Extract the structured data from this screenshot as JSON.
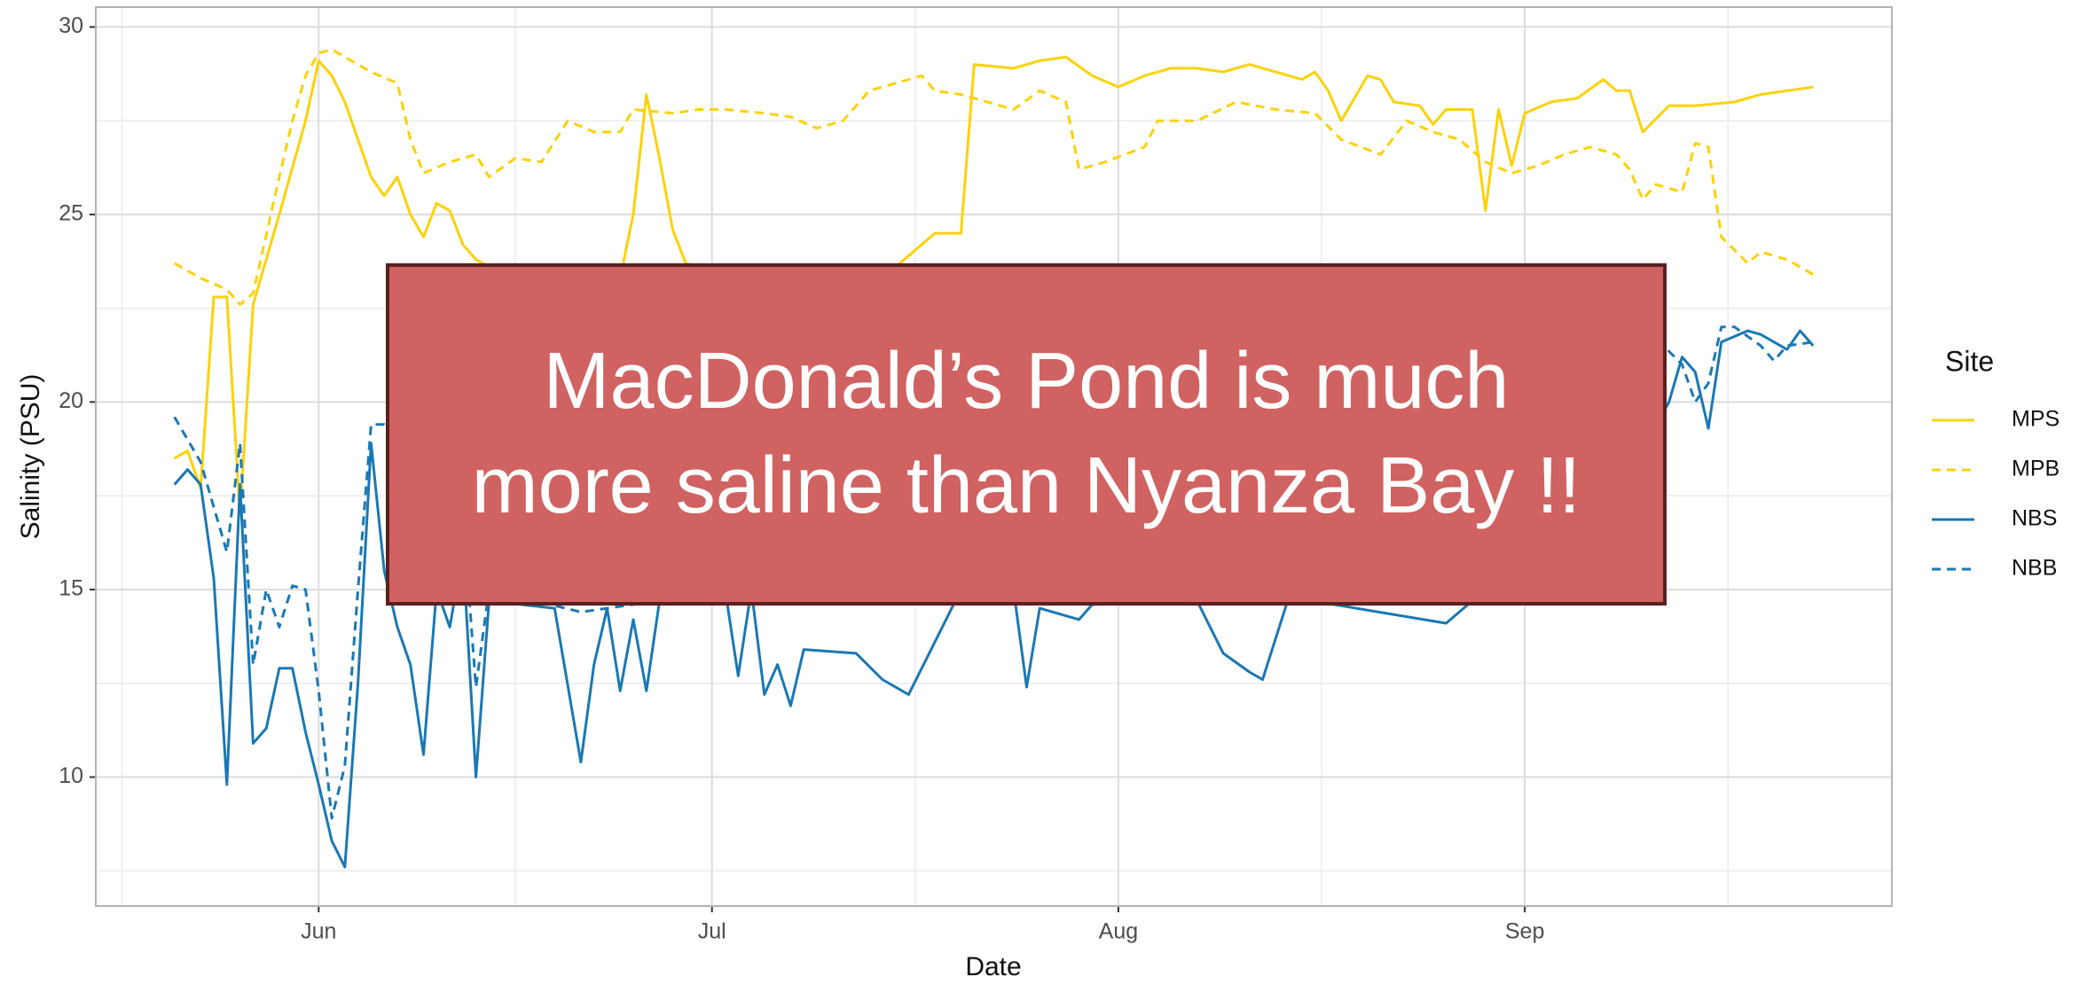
{
  "chart_data": {
    "type": "line",
    "xlabel": "Date",
    "ylabel": "Salinity (PSU)",
    "legend_title": "Site",
    "legend": "right",
    "grid": true,
    "xlim": [
      135,
      272
    ],
    "xticks": [
      {
        "value": 152,
        "label": "Jun"
      },
      {
        "value": 182,
        "label": "Jul"
      },
      {
        "value": 213,
        "label": "Aug"
      },
      {
        "value": 244,
        "label": "Sep"
      }
    ],
    "ylim": [
      6.56,
      30.53
    ],
    "yticks": [
      10,
      15,
      20,
      25,
      30
    ],
    "annotation": {
      "lines": [
        "MacDonald’s Pond is much",
        "more saline than Nyanza Bay !!"
      ],
      "color": "#d06262"
    },
    "series": [
      {
        "name": "MPS",
        "color": "#fcd20a",
        "dashed": false,
        "x": [
          141,
          142,
          143,
          144,
          145,
          146,
          147,
          149,
          151,
          152,
          153,
          154,
          156,
          157,
          158,
          159,
          160,
          161,
          162,
          163,
          164,
          165,
          170,
          175,
          176,
          177,
          178,
          179,
          180,
          185,
          190,
          195,
          199,
          201,
          202,
          205,
          207,
          209,
          211,
          213,
          215,
          217,
          219,
          221,
          223,
          225,
          227,
          228,
          229,
          230,
          232,
          233,
          234,
          236,
          237,
          238,
          240,
          241,
          242,
          243,
          244,
          246,
          248,
          250,
          251,
          252,
          253,
          255,
          257,
          260,
          262,
          264,
          266
        ],
        "values": [
          18.5,
          18.7,
          17.7,
          22.8,
          22.8,
          17.0,
          22.6,
          25,
          27.5,
          29.1,
          28.7,
          28,
          26,
          25.5,
          26,
          25,
          24.4,
          25.3,
          25.1,
          24.2,
          23.8,
          23.6,
          23.5,
          23.3,
          25,
          28.2,
          26.5,
          24.6,
          23.7,
          23.2,
          23.1,
          23.3,
          24.5,
          24.5,
          29,
          28.9,
          29.1,
          29.2,
          28.7,
          28.4,
          28.7,
          28.9,
          28.9,
          28.8,
          29,
          28.8,
          28.6,
          28.8,
          28.3,
          27.5,
          28.7,
          28.6,
          28,
          27.9,
          27.4,
          27.8,
          27.8,
          25.1,
          27.8,
          26.3,
          27.7,
          28,
          28.1,
          28.6,
          28.3,
          28.3,
          27.2,
          27.9,
          27.9,
          28,
          28.2,
          28.3,
          28.4
        ]
      },
      {
        "name": "MPB",
        "color": "#fcd20a",
        "dashed": true,
        "x": [
          141,
          143,
          145,
          146,
          147,
          149,
          150,
          151,
          152,
          153,
          154,
          156,
          158,
          159,
          160,
          162,
          164,
          165,
          167,
          169,
          171,
          173,
          175,
          176,
          179,
          181,
          183,
          186,
          188,
          190,
          192,
          194,
          196,
          198,
          199,
          201,
          203,
          205,
          207,
          209,
          210,
          212,
          215,
          216,
          219,
          222,
          225,
          228,
          230,
          233,
          235,
          237,
          239,
          241,
          243,
          245,
          247,
          249,
          251,
          252,
          253,
          254,
          256,
          257,
          258,
          259,
          261,
          262,
          264,
          266
        ],
        "values": [
          23.7,
          23.3,
          23,
          22.6,
          22.9,
          26,
          27.5,
          28.7,
          29.3,
          29.4,
          29.2,
          28.8,
          28.5,
          27,
          26.1,
          26.4,
          26.6,
          26,
          26.5,
          26.4,
          27.5,
          27.2,
          27.2,
          27.8,
          27.7,
          27.8,
          27.8,
          27.7,
          27.6,
          27.3,
          27.5,
          28.3,
          28.5,
          28.7,
          28.3,
          28.2,
          28,
          27.8,
          28.3,
          28,
          26.2,
          26.4,
          26.8,
          27.5,
          27.5,
          28,
          27.8,
          27.7,
          27,
          26.6,
          27.5,
          27.2,
          27,
          26.4,
          26.1,
          26.3,
          26.6,
          26.8,
          26.6,
          26.2,
          25.4,
          25.8,
          25.6,
          26.9,
          26.8,
          24.4,
          23.7,
          24,
          23.8,
          23.4
        ]
      },
      {
        "name": "NBS",
        "color": "#1a78b4",
        "dashed": false,
        "x": [
          141,
          142,
          143,
          144,
          145,
          146,
          147,
          148,
          149,
          150,
          151,
          152,
          153,
          154,
          155,
          156,
          157,
          158,
          159,
          160,
          161,
          162,
          163,
          164,
          165,
          170,
          172,
          173,
          174,
          175,
          176,
          177,
          178,
          183,
          184,
          185,
          186,
          187,
          188,
          189,
          193,
          195,
          197,
          199,
          201,
          205,
          206,
          207,
          210,
          211,
          219,
          221,
          223,
          224,
          226,
          238,
          241,
          253,
          255,
          256,
          257,
          258,
          259,
          261,
          262,
          264,
          265,
          266
        ],
        "values": [
          17.8,
          18.2,
          17.8,
          15.3,
          9.8,
          17.8,
          10.9,
          11.3,
          12.9,
          12.9,
          11.2,
          9.8,
          8.3,
          7.6,
          12.5,
          18.9,
          15.5,
          14,
          13,
          10.6,
          15,
          14,
          16,
          10,
          14.7,
          14.5,
          10.4,
          13,
          14.5,
          12.3,
          14.2,
          12.3,
          14.7,
          15,
          12.7,
          15,
          12.2,
          13,
          11.9,
          13.4,
          13.3,
          12.6,
          12.2,
          13.6,
          15,
          15,
          12.4,
          14.5,
          14.2,
          14.6,
          14.7,
          13.3,
          12.8,
          12.6,
          14.8,
          14.1,
          15,
          18.7,
          20,
          21.2,
          20.8,
          19.3,
          21.6,
          21.9,
          21.8,
          21.4,
          21.9,
          21.5
        ]
      },
      {
        "name": "NBB",
        "color": "#1a78b4",
        "dashed": true,
        "x": [
          141,
          142,
          143,
          145,
          146,
          147,
          148,
          149,
          150,
          151,
          152,
          153,
          154,
          155,
          156,
          157,
          158,
          159,
          163,
          164,
          165,
          172,
          174,
          178,
          240,
          253,
          254,
          256,
          257,
          258,
          259,
          260,
          262,
          263,
          264,
          266
        ],
        "values": [
          19.6,
          19,
          18.4,
          16,
          18.9,
          13,
          15,
          14,
          15.1,
          15,
          12.3,
          8.9,
          10.3,
          15,
          19.4,
          19.4,
          19,
          17,
          17,
          12.4,
          15,
          14.4,
          14.5,
          14.7,
          15,
          20.3,
          21.7,
          21,
          20,
          20.5,
          22,
          22,
          21.5,
          21.1,
          21.5,
          21.6
        ]
      }
    ]
  }
}
